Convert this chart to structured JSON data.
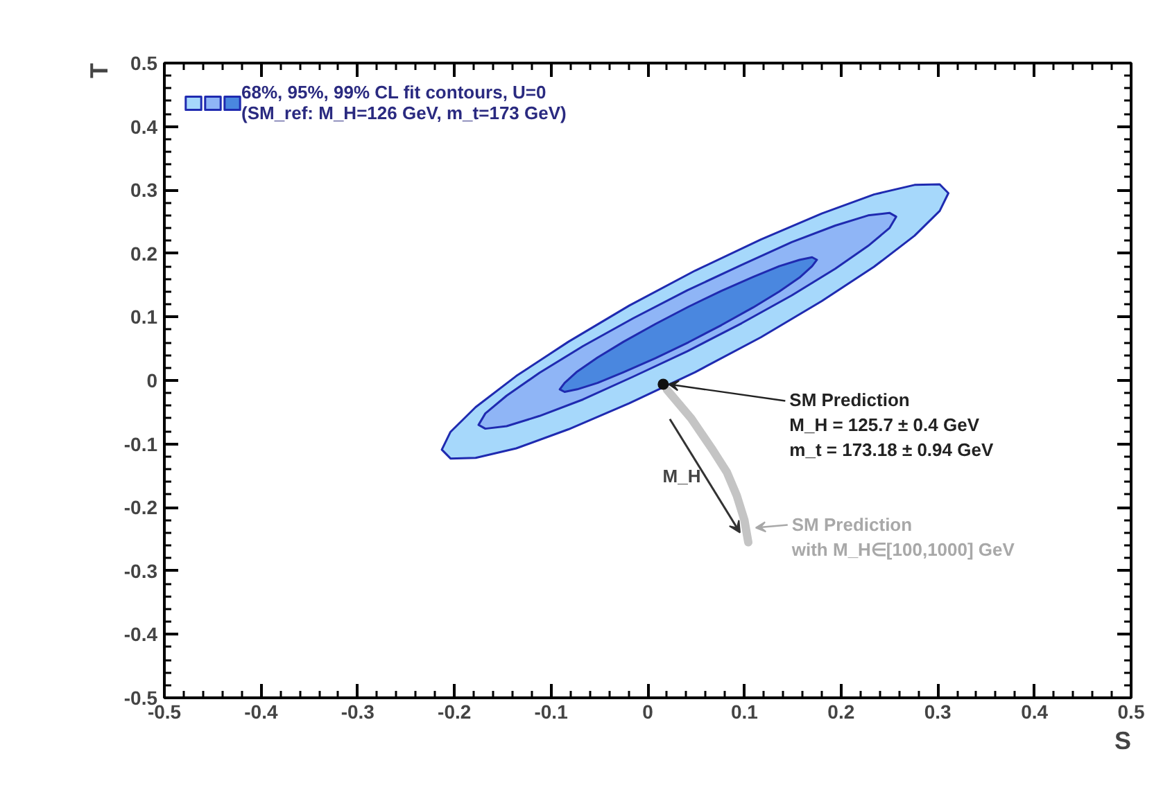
{
  "chart_data": {
    "type": "area",
    "xlabel": "S",
    "ylabel": "T",
    "legend": "top left",
    "xlim": [
      -0.5,
      0.5
    ],
    "ylim": [
      -0.5,
      0.5
    ],
    "xticks": [
      -0.5,
      -0.4,
      -0.3,
      -0.2,
      -0.1,
      0,
      0.1,
      0.2,
      0.3,
      0.4,
      0.5
    ],
    "yticks": [
      -0.5,
      -0.4,
      -0.3,
      -0.2,
      -0.1,
      0,
      0.1,
      0.2,
      0.3,
      0.4,
      0.5
    ],
    "grid": false,
    "series": [
      {
        "color": "#a6d8fb",
        "x": [
          0.311,
          0.302,
          0.276,
          0.234,
          0.18,
          0.117,
          0.049,
          -0.019,
          -0.082,
          -0.136,
          -0.178,
          -0.204,
          -0.213,
          -0.204,
          -0.178,
          -0.136,
          -0.082,
          -0.019,
          0.049,
          0.117,
          0.18,
          0.234,
          0.276,
          0.302
        ],
        "values": [
          0.295,
          0.309,
          0.308,
          0.293,
          0.263,
          0.222,
          0.173,
          0.118,
          0.061,
          0.007,
          -0.042,
          -0.081,
          -0.109,
          -0.123,
          -0.122,
          -0.107,
          -0.077,
          -0.036,
          0.013,
          0.068,
          0.125,
          0.179,
          0.228,
          0.267
        ]
      },
      {
        "color": "#8fb5f6",
        "x": [
          0.257,
          0.25,
          0.228,
          0.194,
          0.149,
          0.097,
          0.041,
          -0.015,
          -0.067,
          -0.112,
          -0.146,
          -0.168,
          -0.175,
          -0.168,
          -0.146,
          -0.112,
          -0.067,
          -0.015,
          0.041,
          0.097,
          0.149,
          0.194,
          0.228,
          0.25
        ],
        "values": [
          0.258,
          0.264,
          0.26,
          0.244,
          0.218,
          0.182,
          0.142,
          0.098,
          0.054,
          0.012,
          -0.024,
          -0.052,
          -0.07,
          -0.076,
          -0.072,
          -0.056,
          -0.03,
          0.006,
          0.046,
          0.09,
          0.134,
          0.176,
          0.212,
          0.24
        ]
      },
      {
        "name": "68%, 95%, 99% CL fit contours, U=0\n(SM_ref: M_H=126 GeV, m_t=173 GeV)",
        "color": "#4a87df",
        "x": [
          0.175,
          0.17,
          0.157,
          0.136,
          0.109,
          0.076,
          0.042,
          0.008,
          -0.025,
          -0.052,
          -0.073,
          -0.086,
          -0.091,
          -0.086,
          -0.073,
          -0.052,
          -0.025,
          0.008,
          0.042,
          0.076,
          0.109,
          0.136,
          0.157,
          0.17
        ],
        "values": [
          0.19,
          0.194,
          0.19,
          0.18,
          0.163,
          0.141,
          0.116,
          0.089,
          0.061,
          0.036,
          0.014,
          -0.004,
          -0.014,
          -0.018,
          -0.014,
          -0.004,
          0.013,
          0.035,
          0.06,
          0.087,
          0.115,
          0.14,
          0.162,
          0.18
        ]
      },
      {
        "type": "line",
        "color": "#c4c4c4",
        "x": [
          0.02,
          0.045,
          0.067,
          0.082,
          0.092,
          0.1,
          0.104
        ],
        "values": [
          -0.015,
          -0.06,
          -0.109,
          -0.145,
          -0.181,
          -0.22,
          -0.255
        ]
      },
      {
        "type": "scatter",
        "color": "#111111",
        "marker": "circle",
        "x": [
          0.016
        ],
        "values": [
          -0.006
        ]
      }
    ],
    "annotations": [
      {
        "text": "SM Prediction\nM_H = 125.7 ± 0.4 GeV\nm_t = 173.18 ± 0.94 GeV",
        "x": 0.016,
        "y": -0.006
      },
      "M_H",
      {
        "text": "SM Prediction\nwith M_H∈[100,1000] GeV",
        "x": 0.106,
        "y": -0.232
      }
    ]
  }
}
